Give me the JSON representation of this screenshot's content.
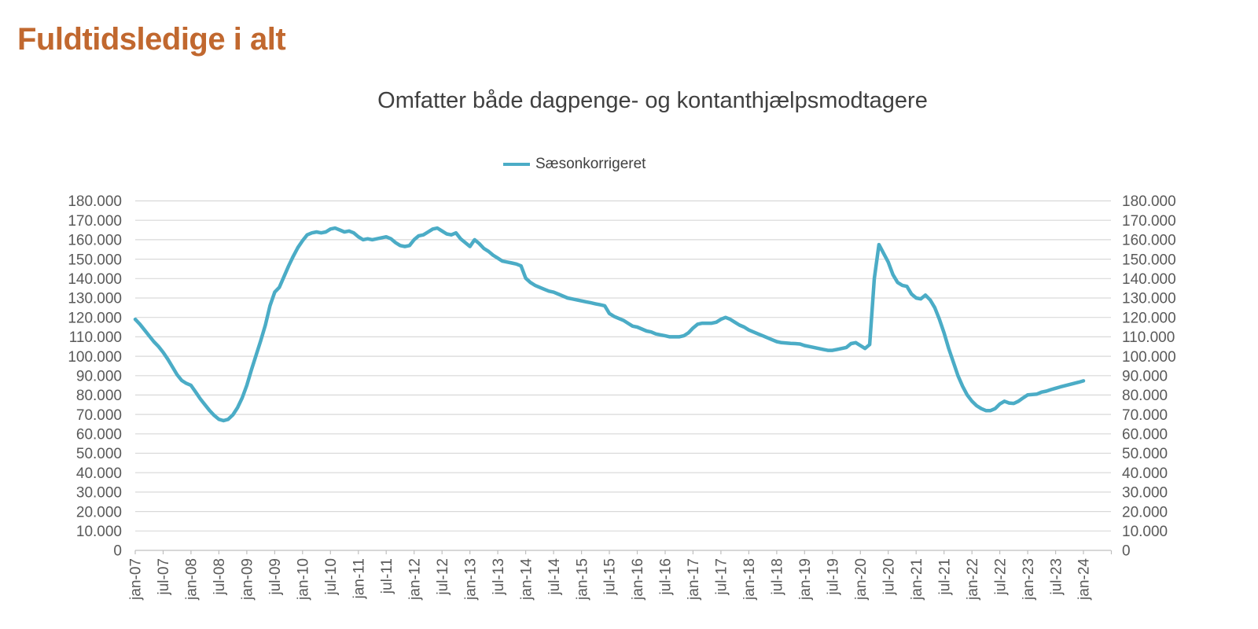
{
  "page": {
    "title": "Fuldtidsledige i alt"
  },
  "chart_data": {
    "type": "line",
    "title": "Omfatter både dagpenge- og kontanthjælpsmodtagere",
    "legend_entries": [
      "Sæsonkorrigeret"
    ],
    "legend_position": "top-center",
    "grid": "horizontal",
    "y_axis_sides": "both",
    "ylim": [
      0,
      180000
    ],
    "y_tick_step": 10000,
    "y_tick_labels": [
      "0",
      "10.000",
      "20.000",
      "30.000",
      "40.000",
      "50.000",
      "60.000",
      "70.000",
      "80.000",
      "90.000",
      "100.000",
      "110.000",
      "120.000",
      "130.000",
      "140.000",
      "150.000",
      "160.000",
      "170.000",
      "180.000"
    ],
    "x_frequency": "monthly",
    "x_start": "jan-07",
    "x_end": "jan-24",
    "x_tick_labels": [
      "jan-07",
      "jul-07",
      "jan-08",
      "jul-08",
      "jan-09",
      "jul-09",
      "jan-10",
      "jul-10",
      "jan-11",
      "jul-11",
      "jan-12",
      "jul-12",
      "jan-13",
      "jul-13",
      "jan-14",
      "jul-14",
      "jan-15",
      "jul-15",
      "jan-16",
      "jul-16",
      "jan-17",
      "jul-17",
      "jan-18",
      "jul-18",
      "jan-19",
      "jul-19",
      "jan-20",
      "jul-20",
      "jan-21",
      "jul-21",
      "jan-22",
      "jul-22",
      "jan-23",
      "jul-23",
      "jan-24"
    ],
    "series": [
      {
        "name": "Sæsonkorrigeret",
        "color": "#4BACC6",
        "values": [
          119000,
          116500,
          113500,
          110500,
          107500,
          105000,
          102000,
          98500,
          94500,
          90500,
          87500,
          86000,
          85000,
          81500,
          78000,
          75000,
          72000,
          69500,
          67500,
          66800,
          67500,
          69800,
          73500,
          78500,
          85000,
          93000,
          100500,
          108000,
          116000,
          126000,
          133000,
          135500,
          141000,
          146500,
          151500,
          156000,
          159500,
          162500,
          163500,
          164000,
          163500,
          164000,
          165500,
          166000,
          165000,
          164000,
          164500,
          163500,
          161500,
          160000,
          160500,
          160000,
          160500,
          161000,
          161500,
          160500,
          158500,
          157000,
          156500,
          157000,
          160000,
          162000,
          162500,
          164000,
          165500,
          166000,
          164500,
          163000,
          162500,
          163500,
          160500,
          158500,
          156500,
          160000,
          158000,
          155500,
          154000,
          152000,
          150500,
          149000,
          148500,
          148000,
          147500,
          146500,
          140200,
          138000,
          136500,
          135500,
          134500,
          133500,
          133000,
          132000,
          131000,
          130000,
          129500,
          129000,
          128500,
          128000,
          127500,
          127000,
          126500,
          126000,
          122000,
          120500,
          119500,
          118500,
          117000,
          115500,
          115000,
          114000,
          113000,
          112500,
          111500,
          111000,
          110500,
          110000,
          110000,
          110000,
          110500,
          112000,
          114500,
          116500,
          117000,
          117000,
          117000,
          117500,
          119000,
          120000,
          119000,
          117500,
          116000,
          115000,
          113500,
          112500,
          111500,
          110500,
          109500,
          108500,
          107500,
          107000,
          106800,
          106600,
          106500,
          106300,
          105500,
          105000,
          104500,
          104000,
          103500,
          103000,
          103000,
          103500,
          104000,
          104500,
          106500,
          107000,
          105500,
          104000,
          106000,
          140000,
          157500,
          153000,
          148500,
          142000,
          138000,
          136500,
          136000,
          132000,
          130000,
          129500,
          131500,
          129000,
          125000,
          119000,
          112000,
          104000,
          97000,
          90000,
          84500,
          80000,
          76800,
          74500,
          73000,
          72000,
          72000,
          73000,
          75400,
          76800,
          75900,
          75700,
          76800,
          78500,
          80100,
          80300,
          80500,
          81500,
          82000,
          82800,
          83500,
          84200,
          84800,
          85400,
          86000,
          86600,
          87300
        ]
      }
    ],
    "colors": {
      "title": "#C1682F",
      "subtitle_text": "#404040",
      "legend_text": "#404040",
      "series_line": "#4BACC6",
      "grid": "#D9D9D9",
      "axis": "#BFBFBF",
      "tick_text": "#595959"
    }
  }
}
